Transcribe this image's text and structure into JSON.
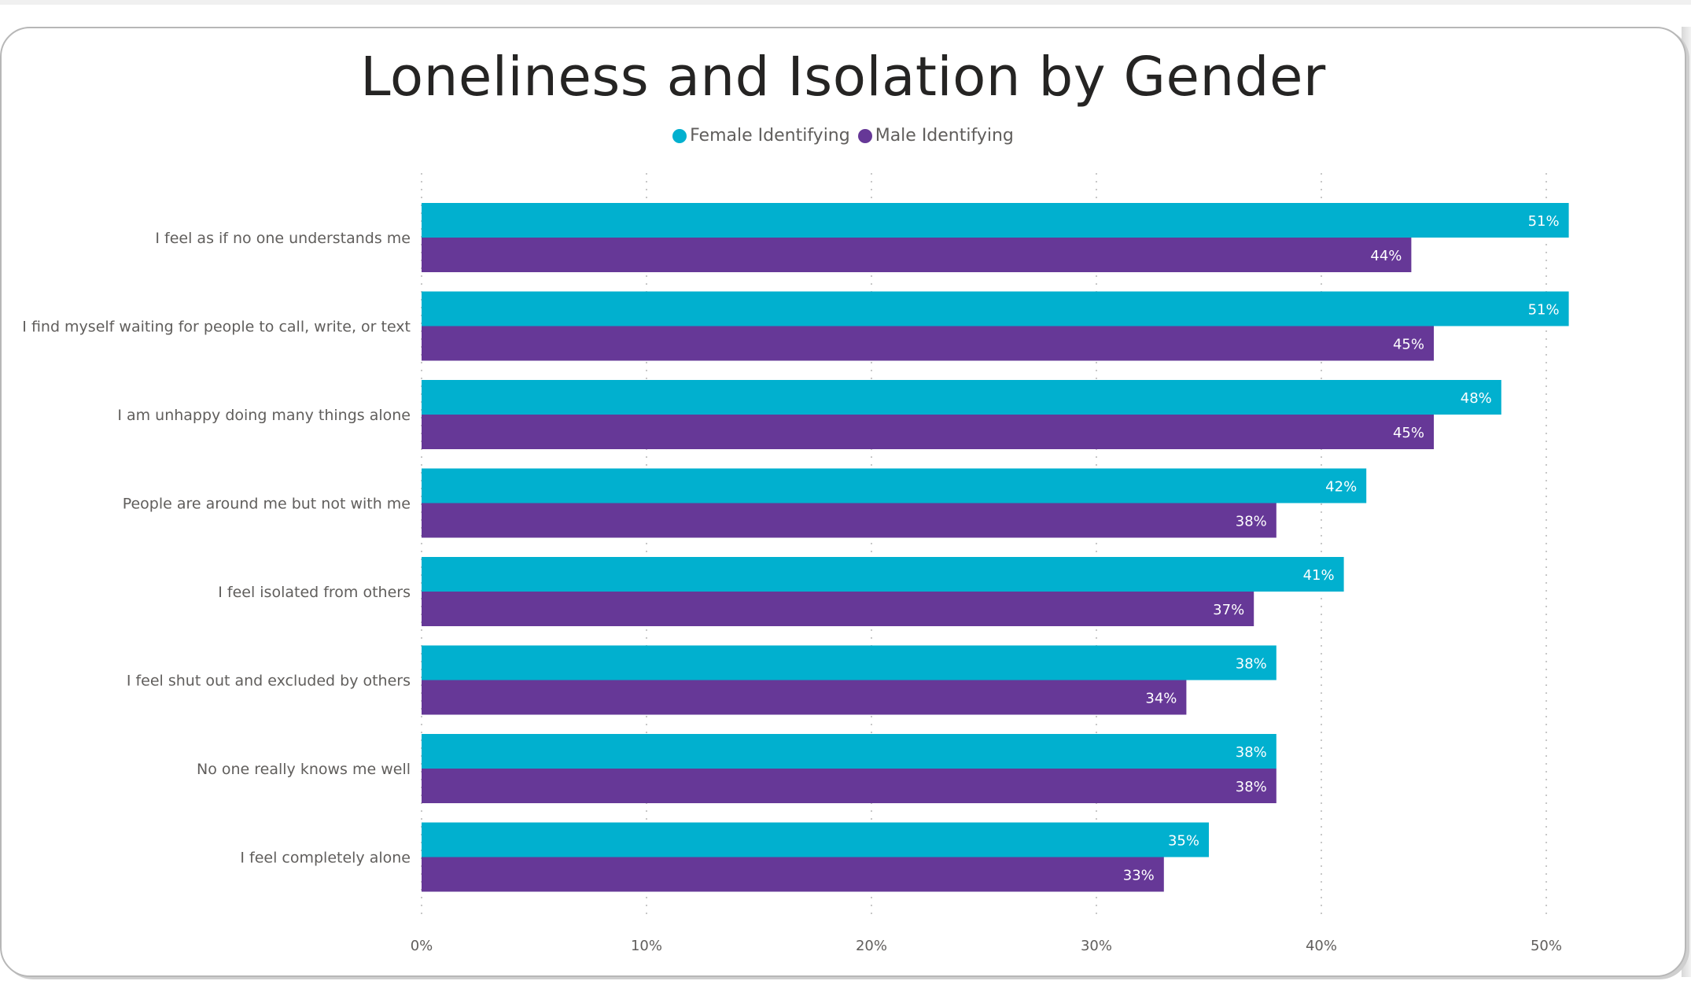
{
  "chart_data": {
    "type": "bar",
    "orientation": "horizontal",
    "title": "Loneliness and Isolation by Gender",
    "categories": [
      "I feel as if no one understands me",
      "I find myself waiting for people to call, write, or text",
      "I am unhappy doing many things alone",
      "People are around me but not with me",
      "I feel isolated from others",
      "I feel shut out and excluded by others",
      "No one really knows me well",
      "I feel completely alone"
    ],
    "series": [
      {
        "name": "Female Identifying",
        "color": "#01b0cf",
        "values": [
          51,
          51,
          48,
          42,
          41,
          38,
          38,
          35
        ],
        "labels": [
          "51%",
          "51%",
          "48%",
          "42%",
          "41%",
          "38%",
          "38%",
          "35%"
        ]
      },
      {
        "name": "Male Identifying",
        "color": "#663897",
        "values": [
          44,
          45,
          45,
          38,
          37,
          34,
          38,
          33
        ],
        "labels": [
          "44%",
          "45%",
          "45%",
          "38%",
          "37%",
          "34%",
          "38%",
          "33%"
        ]
      }
    ],
    "xlim": [
      0,
      50
    ],
    "xticks": [
      0,
      10,
      20,
      30,
      40,
      50
    ],
    "xtick_labels": [
      "0%",
      "10%",
      "20%",
      "30%",
      "40%",
      "50%"
    ],
    "grid": true,
    "legend_position": "top-center"
  }
}
